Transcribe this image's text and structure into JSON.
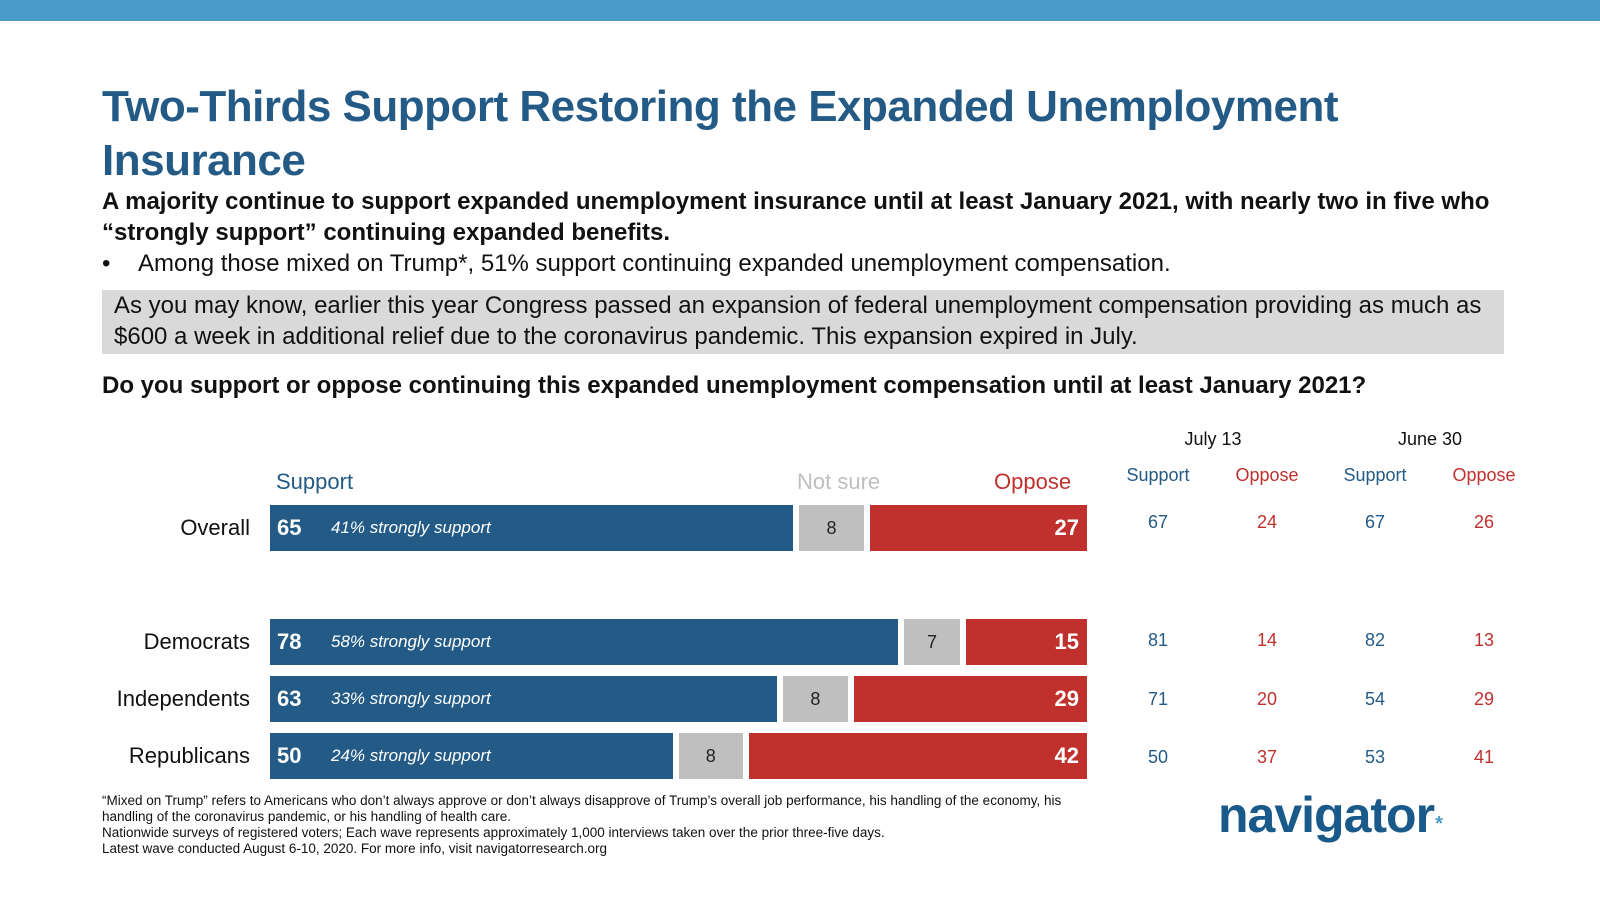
{
  "header": {
    "title": "Two-Thirds Support Restoring the Expanded Unemployment Insurance",
    "subtitle": "A majority continue to support expanded unemployment insurance until at least January 2021, with nearly two in five who “strongly support” continuing expanded benefits.",
    "bullet": "Among those mixed on Trump*, 51% support continuing expanded unemployment compensation.",
    "bullet_symbol": "•",
    "quote": "As you may know, earlier this year Congress passed an expansion of federal unemployment compensation providing as much as $600 a week in additional relief due to the coronavirus pandemic. This expansion expired in July.",
    "question": "Do you support or oppose continuing this expanded unemployment compensation until at least January 2021?"
  },
  "colors": {
    "support": "#245b86",
    "not_sure": "#bfbfbf",
    "oppose": "#c0312e",
    "top_bar": "#4a9bc9",
    "quote_bg": "#d9d9d9"
  },
  "chart_data": {
    "type": "bar",
    "orientation": "horizontal-stacked",
    "title": "Do you support or oppose continuing this expanded unemployment compensation until at least January 2021?",
    "legend": [
      "Support",
      "Not sure",
      "Oppose"
    ],
    "categories": [
      "Overall",
      "Democrats",
      "Independents",
      "Republicans"
    ],
    "series": [
      {
        "name": "Support",
        "values": [
          65,
          78,
          63,
          50
        ]
      },
      {
        "name": "Not sure",
        "values": [
          8,
          7,
          8,
          8
        ]
      },
      {
        "name": "Oppose",
        "values": [
          27,
          15,
          29,
          42
        ]
      }
    ],
    "strongly_support_labels": [
      "41% strongly support",
      "58% strongly support",
      "33% strongly support",
      "24% strongly support"
    ],
    "xlim": [
      0,
      100
    ],
    "grid": false,
    "trend_table": {
      "waves": [
        {
          "date": "July 13",
          "columns": [
            "Support",
            "Oppose"
          ],
          "values": [
            [
              67,
              24
            ],
            [
              81,
              14
            ],
            [
              71,
              20
            ],
            [
              50,
              37
            ]
          ]
        },
        {
          "date": "June 30",
          "columns": [
            "Support",
            "Oppose"
          ],
          "values": [
            [
              67,
              26
            ],
            [
              82,
              13
            ],
            [
              54,
              29
            ],
            [
              53,
              41
            ]
          ]
        }
      ]
    }
  },
  "footnotes": [
    "“Mixed on Trump” refers to Americans who don’t always approve or don’t always disapprove of Trump’s overall job performance, his handling of the economy, his handling of the coronavirus pandemic, or his handling of health care.",
    "Nationwide surveys of registered voters; Each wave represents approximately 1,000 interviews taken over the prior three-five days.",
    "Latest wave conducted August 6-10, 2020. For more info, visit navigatorresearch.org"
  ],
  "logo": {
    "text": "navigator",
    "mark": "*"
  }
}
